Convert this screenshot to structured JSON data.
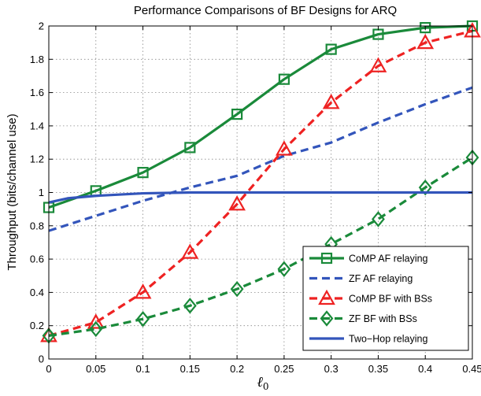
{
  "chart_data": {
    "type": "line",
    "title": "Performance Comparisons of BF Designs for ARQ",
    "xlabel": "ℓ",
    "xlabel_subscript": "0",
    "ylabel": "Throughput (bits/channel use)",
    "xlim": [
      0,
      0.45
    ],
    "ylim": [
      0,
      2
    ],
    "xticks": [
      "0",
      "0.05",
      "0.1",
      "0.15",
      "0.2",
      "0.25",
      "0.3",
      "0.35",
      "0.4",
      "0.45"
    ],
    "yticks": [
      "0",
      "0.2",
      "0.4",
      "0.6",
      "0.8",
      "1",
      "1.2",
      "1.4",
      "1.6",
      "1.8",
      "2"
    ],
    "grid": true,
    "legend_position": "bottom-right",
    "x": [
      0,
      0.05,
      0.1,
      0.15,
      0.2,
      0.25,
      0.3,
      0.35,
      0.4,
      0.45
    ],
    "series": [
      {
        "name": "CoMP AF relaying",
        "color": "#1a8a3a",
        "dash": "solid",
        "marker": "square",
        "values": [
          0.91,
          1.01,
          1.12,
          1.27,
          1.47,
          1.68,
          1.86,
          1.95,
          1.99,
          2.0
        ]
      },
      {
        "name": "ZF AF relaying",
        "color": "#3355bb",
        "dash": "dashed",
        "marker": "none",
        "values": [
          0.77,
          0.86,
          0.95,
          1.03,
          1.1,
          1.22,
          1.3,
          1.42,
          1.53,
          1.63
        ]
      },
      {
        "name": "CoMP BF with BSs",
        "color": "#ee2222",
        "dash": "dashed",
        "marker": "triangle",
        "values": [
          0.14,
          0.22,
          0.4,
          0.64,
          0.93,
          1.26,
          1.54,
          1.76,
          1.9,
          1.97
        ]
      },
      {
        "name": "ZF BF with BSs",
        "color": "#1a8a3a",
        "dash": "dashed",
        "marker": "diamond",
        "values": [
          0.14,
          0.18,
          0.24,
          0.32,
          0.42,
          0.54,
          0.69,
          0.84,
          1.03,
          1.21
        ]
      },
      {
        "name": "Two−Hop relaying",
        "color": "#3355bb",
        "dash": "solid",
        "marker": "none",
        "x": [
          0,
          0.02,
          0.05,
          0.1,
          0.15,
          0.2,
          0.25,
          0.3,
          0.35,
          0.4,
          0.45
        ],
        "values": [
          0.94,
          0.965,
          0.98,
          0.995,
          1.0,
          1.0,
          1.0,
          1.0,
          1.0,
          1.0,
          1.0
        ]
      }
    ]
  }
}
